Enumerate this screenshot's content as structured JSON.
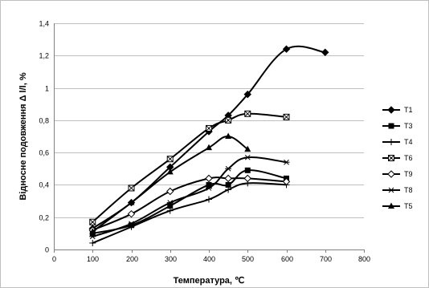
{
  "chart_data": {
    "type": "line",
    "title": "",
    "xlabel": "Температура, ℃",
    "ylabel": "Відносне подовження Δ l/l, %",
    "xlim": [
      0,
      800
    ],
    "ylim": [
      0,
      1.4
    ],
    "xticks": [
      "0",
      "100",
      "200",
      "300",
      "400",
      "500",
      "600",
      "700",
      "800"
    ],
    "yticks": [
      "0",
      "0,2",
      "0,4",
      "0,6",
      "0,8",
      "1",
      "1,2",
      "1,4"
    ],
    "grid": "horizontal",
    "legend_position": "right",
    "series": [
      {
        "name": "T1",
        "marker": "diamond-filled",
        "x": [
          100,
          200,
          300,
          400,
          450,
          500,
          600,
          700
        ],
        "y": [
          0.13,
          0.29,
          0.51,
          0.73,
          0.83,
          0.96,
          1.24,
          1.22
        ]
      },
      {
        "name": "T3",
        "marker": "square-filled",
        "x": [
          100,
          200,
          300,
          400,
          450,
          500,
          600
        ],
        "y": [
          0.1,
          0.15,
          0.27,
          0.4,
          0.4,
          0.49,
          0.44
        ]
      },
      {
        "name": "T4",
        "marker": "plus",
        "x": [
          100,
          200,
          300,
          400,
          450,
          500,
          600
        ],
        "y": [
          0.04,
          0.14,
          0.24,
          0.31,
          0.37,
          0.41,
          0.4
        ]
      },
      {
        "name": "T6",
        "marker": "square-x",
        "x": [
          100,
          200,
          300,
          400,
          450,
          500,
          600
        ],
        "y": [
          0.17,
          0.38,
          0.56,
          0.75,
          0.8,
          0.84,
          0.82
        ]
      },
      {
        "name": "T9",
        "marker": "diamond-open",
        "x": [
          100,
          200,
          300,
          400,
          450,
          500,
          600
        ],
        "y": [
          0.12,
          0.22,
          0.36,
          0.44,
          0.44,
          0.44,
          0.42
        ]
      },
      {
        "name": "T8",
        "marker": "star",
        "x": [
          100,
          200,
          300,
          400,
          450,
          500,
          600
        ],
        "y": [
          0.08,
          0.16,
          0.29,
          0.38,
          0.5,
          0.57,
          0.54
        ]
      },
      {
        "name": "T5",
        "marker": "triangle-filled",
        "x": [
          100,
          200,
          300,
          400,
          450,
          500
        ],
        "y": [
          0.11,
          0.29,
          0.48,
          0.63,
          0.7,
          0.62
        ]
      }
    ]
  }
}
